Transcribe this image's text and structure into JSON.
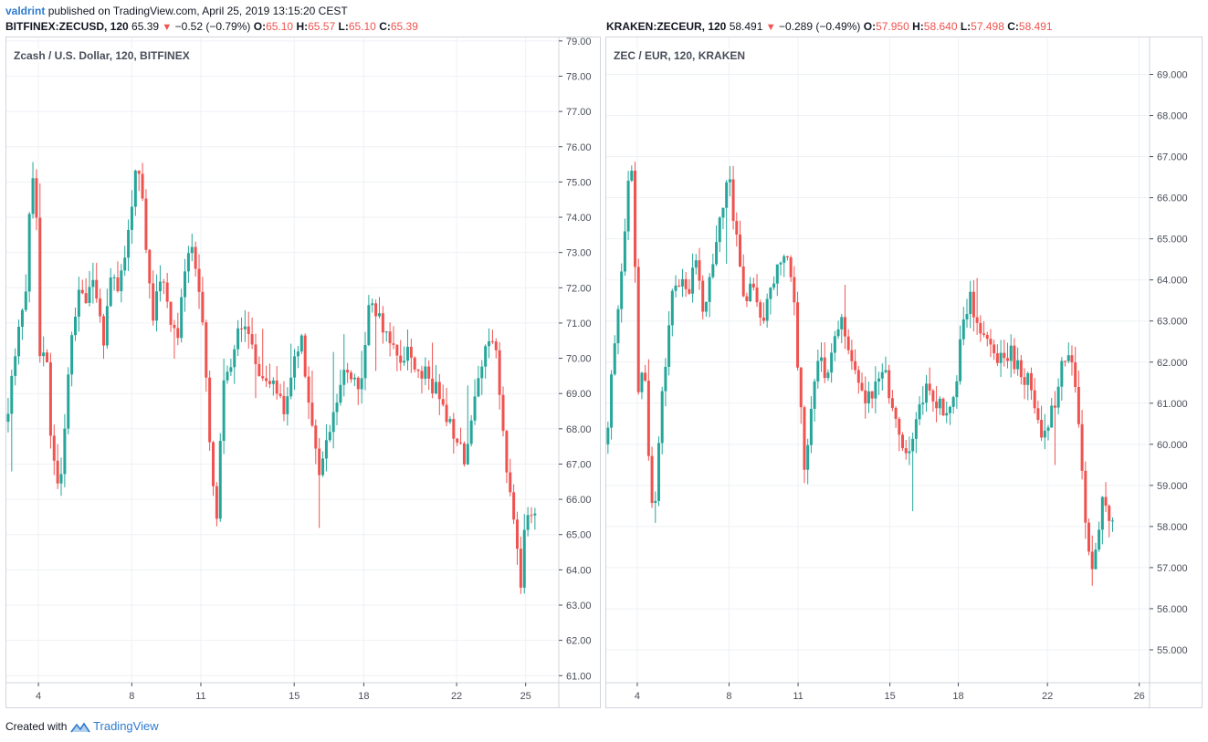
{
  "header": {
    "user": "valdrint",
    "published_text": "published on TradingView.com, April 25, 2019 13:15:20 CEST"
  },
  "left_quote": {
    "symbol": "BITFINEX:ZECUSD, 120",
    "price": "65.39",
    "change": "−0.52 (−0.79%)",
    "o_label": "O:",
    "o": "65.10",
    "h_label": "H:",
    "h": "65.57",
    "l_label": "L:",
    "l": "65.10",
    "c_label": "C:",
    "c": "65.39"
  },
  "right_quote": {
    "symbol": "KRAKEN:ZECEUR, 120",
    "price": "58.491",
    "change": "−0.289 (−0.49%)",
    "o_label": "O:",
    "o": "57.950",
    "h_label": "H:",
    "h": "58.640",
    "l_label": "L:",
    "l": "57.498",
    "c_label": "C:",
    "c": "58.491"
  },
  "footer": {
    "created_with": "Created with",
    "brand": "TradingView"
  },
  "colors": {
    "up": "#26a69a",
    "down": "#ef5350",
    "grid": "#eef1f5",
    "border": "#d1d4dc",
    "brand": "#2e7bcf"
  },
  "chart_data": [
    {
      "type": "candlestick",
      "legend": "Zcash / U.S. Dollar, 120, BITFINEX",
      "ylim": [
        60.8,
        79.1
      ],
      "y_ticks": [
        "61.00",
        "62.00",
        "63.00",
        "64.00",
        "65.00",
        "66.00",
        "67.00",
        "68.00",
        "69.00",
        "70.00",
        "71.00",
        "72.00",
        "73.00",
        "74.00",
        "75.00",
        "76.00",
        "77.00",
        "78.00",
        "79.00"
      ],
      "x_ticks": [
        {
          "label": "4",
          "t": 0.058
        },
        {
          "label": "8",
          "t": 0.227
        },
        {
          "label": "11",
          "t": 0.352
        },
        {
          "label": "15",
          "t": 0.521
        },
        {
          "label": "18",
          "t": 0.647
        },
        {
          "label": "22",
          "t": 0.815
        },
        {
          "label": "25",
          "t": 0.94
        }
      ],
      "path": [
        [
          0.0,
          68.2
        ],
        [
          0.02,
          70.5
        ],
        [
          0.035,
          72.0
        ],
        [
          0.045,
          75.5
        ],
        [
          0.055,
          74.0
        ],
        [
          0.062,
          69.0
        ],
        [
          0.07,
          71.0
        ],
        [
          0.08,
          68.0
        ],
        [
          0.095,
          66.0
        ],
        [
          0.105,
          68.0
        ],
        [
          0.115,
          70.0
        ],
        [
          0.13,
          72.0
        ],
        [
          0.145,
          71.5
        ],
        [
          0.16,
          72.2
        ],
        [
          0.175,
          70.5
        ],
        [
          0.19,
          72.5
        ],
        [
          0.205,
          72.0
        ],
        [
          0.22,
          73.5
        ],
        [
          0.235,
          75.5
        ],
        [
          0.245,
          74.5
        ],
        [
          0.255,
          73.0
        ],
        [
          0.265,
          71.0
        ],
        [
          0.28,
          72.5
        ],
        [
          0.295,
          71.0
        ],
        [
          0.31,
          70.5
        ],
        [
          0.325,
          72.8
        ],
        [
          0.34,
          73.0
        ],
        [
          0.35,
          72.0
        ],
        [
          0.36,
          70.0
        ],
        [
          0.372,
          66.5
        ],
        [
          0.382,
          65.5
        ],
        [
          0.39,
          69.0
        ],
        [
          0.4,
          69.5
        ],
        [
          0.415,
          70.5
        ],
        [
          0.43,
          71.2
        ],
        [
          0.445,
          70.5
        ],
        [
          0.46,
          69.5
        ],
        [
          0.475,
          69.3
        ],
        [
          0.49,
          69.0
        ],
        [
          0.505,
          68.5
        ],
        [
          0.52,
          70.0
        ],
        [
          0.535,
          70.5
        ],
        [
          0.55,
          68.5
        ],
        [
          0.565,
          66.5
        ],
        [
          0.58,
          67.5
        ],
        [
          0.595,
          68.5
        ],
        [
          0.61,
          69.8
        ],
        [
          0.625,
          69.5
        ],
        [
          0.64,
          69.0
        ],
        [
          0.655,
          71.5
        ],
        [
          0.668,
          71.5
        ],
        [
          0.68,
          71.0
        ],
        [
          0.695,
          70.3
        ],
        [
          0.71,
          70.0
        ],
        [
          0.725,
          70.3
        ],
        [
          0.74,
          69.8
        ],
        [
          0.755,
          69.6
        ],
        [
          0.77,
          69.2
        ],
        [
          0.785,
          69.0
        ],
        [
          0.8,
          68.3
        ],
        [
          0.815,
          67.8
        ],
        [
          0.83,
          67.2
        ],
        [
          0.845,
          68.5
        ],
        [
          0.86,
          70.0
        ],
        [
          0.875,
          70.5
        ],
        [
          0.885,
          70.2
        ],
        [
          0.895,
          68.5
        ],
        [
          0.905,
          67.0
        ],
        [
          0.915,
          66.2
        ],
        [
          0.925,
          64.5
        ],
        [
          0.932,
          63.5
        ],
        [
          0.94,
          65.5
        ],
        [
          0.95,
          65.8
        ],
        [
          0.96,
          65.4
        ]
      ]
    },
    {
      "type": "candlestick",
      "legend": "ZEC / EUR, 120, KRAKEN",
      "ylim": [
        54.2,
        69.9
      ],
      "y_ticks": [
        "55.000",
        "56.000",
        "57.000",
        "58.000",
        "59.000",
        "60.000",
        "61.000",
        "62.000",
        "63.000",
        "64.000",
        "65.000",
        "66.000",
        "67.000",
        "68.000",
        "69.000"
      ],
      "x_ticks": [
        {
          "label": "4",
          "t": 0.057
        },
        {
          "label": "8",
          "t": 0.226
        },
        {
          "label": "11",
          "t": 0.353
        },
        {
          "label": "15",
          "t": 0.522
        },
        {
          "label": "18",
          "t": 0.648
        },
        {
          "label": "22",
          "t": 0.812
        },
        {
          "label": "26",
          "t": 0.981
        }
      ],
      "path": [
        [
          0.0,
          60.0
        ],
        [
          0.015,
          62.5
        ],
        [
          0.03,
          64.5
        ],
        [
          0.045,
          67.0
        ],
        [
          0.052,
          65.0
        ],
        [
          0.06,
          61.0
        ],
        [
          0.07,
          62.0
        ],
        [
          0.08,
          59.0
        ],
        [
          0.09,
          58.5
        ],
        [
          0.105,
          61.5
        ],
        [
          0.12,
          63.5
        ],
        [
          0.135,
          64.0
        ],
        [
          0.15,
          63.5
        ],
        [
          0.165,
          64.5
        ],
        [
          0.18,
          63.0
        ],
        [
          0.195,
          64.5
        ],
        [
          0.21,
          65.5
        ],
        [
          0.225,
          66.5
        ],
        [
          0.24,
          65.0
        ],
        [
          0.255,
          63.5
        ],
        [
          0.27,
          64.0
        ],
        [
          0.285,
          62.8
        ],
        [
          0.3,
          63.5
        ],
        [
          0.315,
          64.5
        ],
        [
          0.33,
          64.8
        ],
        [
          0.345,
          63.5
        ],
        [
          0.355,
          61.5
        ],
        [
          0.365,
          59.5
        ],
        [
          0.375,
          60.5
        ],
        [
          0.39,
          62.0
        ],
        [
          0.405,
          61.8
        ],
        [
          0.42,
          62.5
        ],
        [
          0.435,
          63.0
        ],
        [
          0.45,
          62.0
        ],
        [
          0.465,
          61.5
        ],
        [
          0.48,
          61.0
        ],
        [
          0.495,
          61.5
        ],
        [
          0.51,
          62.0
        ],
        [
          0.525,
          61.0
        ],
        [
          0.54,
          60.0
        ],
        [
          0.555,
          59.8
        ],
        [
          0.57,
          60.5
        ],
        [
          0.585,
          61.3
        ],
        [
          0.6,
          61.2
        ],
        [
          0.615,
          61.0
        ],
        [
          0.63,
          60.6
        ],
        [
          0.645,
          61.5
        ],
        [
          0.655,
          63.2
        ],
        [
          0.67,
          63.5
        ],
        [
          0.685,
          63.0
        ],
        [
          0.7,
          62.5
        ],
        [
          0.715,
          62.2
        ],
        [
          0.73,
          62.0
        ],
        [
          0.745,
          62.2
        ],
        [
          0.76,
          61.8
        ],
        [
          0.775,
          61.6
        ],
        [
          0.79,
          61.0
        ],
        [
          0.8,
          60.0
        ],
        [
          0.81,
          60.2
        ],
        [
          0.825,
          61.0
        ],
        [
          0.84,
          62.0
        ],
        [
          0.855,
          62.3
        ],
        [
          0.865,
          61.0
        ],
        [
          0.875,
          59.5
        ],
        [
          0.885,
          57.8
        ],
        [
          0.895,
          57.0
        ],
        [
          0.905,
          57.5
        ],
        [
          0.915,
          58.8
        ],
        [
          0.925,
          58.3
        ],
        [
          0.935,
          58.2
        ]
      ]
    }
  ]
}
